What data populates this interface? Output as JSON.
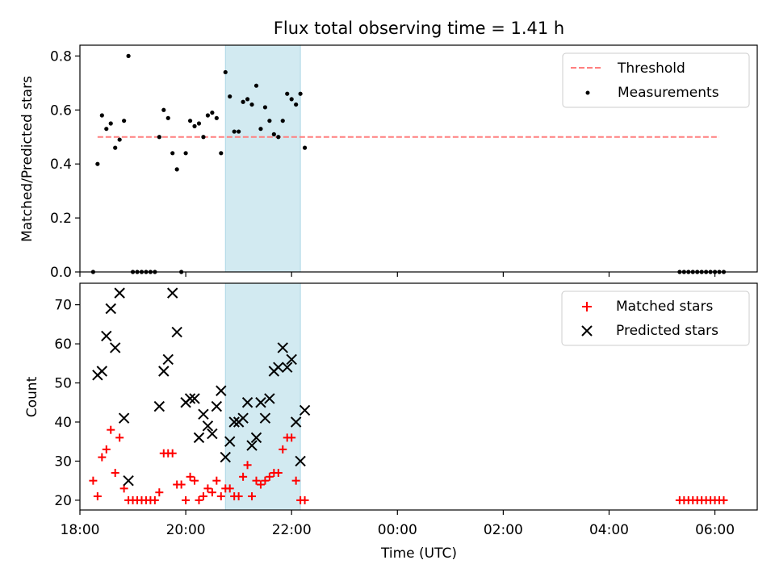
{
  "title": "Flux total observing time = 1.41 h",
  "colors": {
    "threshold": "#ff7f7f",
    "measurement": "#000000",
    "matched": "#ff0000",
    "predicted": "#000000",
    "highlight": "#add8e6"
  },
  "chart_data": [
    {
      "type": "scatter",
      "panel": "top",
      "ylabel": "Matched/Predicted stars",
      "xlabel": "",
      "xlim": [
        18.0,
        6.8
      ],
      "ylim": [
        0.0,
        0.84
      ],
      "yticks": [
        0.0,
        0.2,
        0.4,
        0.6,
        0.8
      ],
      "ytick_labels": [
        "0.0",
        "0.2",
        "0.4",
        "0.6",
        "0.8"
      ],
      "grid": false,
      "legend_position": "top-right",
      "legend": [
        "Threshold",
        "Measurements"
      ],
      "highlight_span": [
        "20:45",
        "22:10"
      ],
      "threshold": {
        "name": "Threshold",
        "value": 0.5,
        "x_start": "18:20",
        "x_end": "06:05"
      },
      "series": [
        {
          "name": "Measurements",
          "marker": "dot",
          "points": [
            [
              "18:15",
              0.0
            ],
            [
              "18:20",
              0.4
            ],
            [
              "18:25",
              0.58
            ],
            [
              "18:30",
              0.53
            ],
            [
              "18:35",
              0.55
            ],
            [
              "18:40",
              0.46
            ],
            [
              "18:45",
              0.49
            ],
            [
              "18:50",
              0.56
            ],
            [
              "18:55",
              0.8
            ],
            [
              "19:00",
              0.0
            ],
            [
              "19:05",
              0.0
            ],
            [
              "19:10",
              0.0
            ],
            [
              "19:15",
              0.0
            ],
            [
              "19:20",
              0.0
            ],
            [
              "19:25",
              0.0
            ],
            [
              "19:30",
              0.5
            ],
            [
              "19:35",
              0.6
            ],
            [
              "19:40",
              0.57
            ],
            [
              "19:45",
              0.44
            ],
            [
              "19:50",
              0.38
            ],
            [
              "19:55",
              0.0
            ],
            [
              "20:00",
              0.44
            ],
            [
              "20:05",
              0.56
            ],
            [
              "20:10",
              0.54
            ],
            [
              "20:15",
              0.55
            ],
            [
              "20:20",
              0.5
            ],
            [
              "20:25",
              0.58
            ],
            [
              "20:30",
              0.59
            ],
            [
              "20:35",
              0.57
            ],
            [
              "20:40",
              0.44
            ],
            [
              "20:45",
              0.74
            ],
            [
              "20:50",
              0.65
            ],
            [
              "20:55",
              0.52
            ],
            [
              "21:00",
              0.52
            ],
            [
              "21:05",
              0.63
            ],
            [
              "21:10",
              0.64
            ],
            [
              "21:15",
              0.62
            ],
            [
              "21:20",
              0.69
            ],
            [
              "21:25",
              0.53
            ],
            [
              "21:30",
              0.61
            ],
            [
              "21:35",
              0.56
            ],
            [
              "21:40",
              0.51
            ],
            [
              "21:45",
              0.5
            ],
            [
              "21:50",
              0.56
            ],
            [
              "21:55",
              0.66
            ],
            [
              "22:00",
              0.64
            ],
            [
              "22:05",
              0.62
            ],
            [
              "22:10",
              0.66
            ],
            [
              "22:15",
              0.46
            ],
            [
              "05:20",
              0.0
            ],
            [
              "05:25",
              0.0
            ],
            [
              "05:30",
              0.0
            ],
            [
              "05:35",
              0.0
            ],
            [
              "05:40",
              0.0
            ],
            [
              "05:45",
              0.0
            ],
            [
              "05:50",
              0.0
            ],
            [
              "05:55",
              0.0
            ],
            [
              "06:00",
              0.0
            ],
            [
              "06:05",
              0.0
            ],
            [
              "06:10",
              0.0
            ]
          ]
        }
      ]
    },
    {
      "type": "scatter",
      "panel": "bottom",
      "ylabel": "Count",
      "xlabel": "Time (UTC)",
      "xlim": [
        18.0,
        6.8
      ],
      "ylim": [
        17.5,
        75.5
      ],
      "yticks": [
        20,
        30,
        40,
        50,
        60,
        70
      ],
      "ytick_labels": [
        "20",
        "30",
        "40",
        "50",
        "60",
        "70"
      ],
      "xticks": [
        "18:00",
        "20:00",
        "22:00",
        "00:00",
        "02:00",
        "04:00",
        "06:00"
      ],
      "grid": false,
      "legend_position": "top-right",
      "legend": [
        "Matched stars",
        "Predicted stars"
      ],
      "highlight_span": [
        "20:45",
        "22:10"
      ],
      "series": [
        {
          "name": "Matched stars",
          "marker": "plus",
          "points": [
            [
              "18:15",
              25
            ],
            [
              "18:20",
              21
            ],
            [
              "18:25",
              31
            ],
            [
              "18:30",
              33
            ],
            [
              "18:35",
              38
            ],
            [
              "18:40",
              27
            ],
            [
              "18:45",
              36
            ],
            [
              "18:50",
              23
            ],
            [
              "18:55",
              20
            ],
            [
              "19:00",
              20
            ],
            [
              "19:05",
              20
            ],
            [
              "19:10",
              20
            ],
            [
              "19:15",
              20
            ],
            [
              "19:20",
              20
            ],
            [
              "19:25",
              20
            ],
            [
              "19:30",
              22
            ],
            [
              "19:35",
              32
            ],
            [
              "19:40",
              32
            ],
            [
              "19:45",
              32
            ],
            [
              "19:50",
              24
            ],
            [
              "19:55",
              24
            ],
            [
              "20:00",
              20
            ],
            [
              "20:05",
              26
            ],
            [
              "20:10",
              25
            ],
            [
              "20:15",
              20
            ],
            [
              "20:20",
              21
            ],
            [
              "20:25",
              23
            ],
            [
              "20:30",
              22
            ],
            [
              "20:35",
              25
            ],
            [
              "20:40",
              21
            ],
            [
              "20:45",
              23
            ],
            [
              "20:50",
              23
            ],
            [
              "20:55",
              21
            ],
            [
              "21:00",
              21
            ],
            [
              "21:05",
              26
            ],
            [
              "21:10",
              29
            ],
            [
              "21:15",
              21
            ],
            [
              "21:20",
              25
            ],
            [
              "21:25",
              24
            ],
            [
              "21:30",
              25
            ],
            [
              "21:35",
              26
            ],
            [
              "21:40",
              27
            ],
            [
              "21:45",
              27
            ],
            [
              "21:50",
              33
            ],
            [
              "21:55",
              36
            ],
            [
              "22:00",
              36
            ],
            [
              "22:05",
              25
            ],
            [
              "22:10",
              20
            ],
            [
              "22:15",
              20
            ],
            [
              "05:20",
              20
            ],
            [
              "05:25",
              20
            ],
            [
              "05:30",
              20
            ],
            [
              "05:35",
              20
            ],
            [
              "05:40",
              20
            ],
            [
              "05:45",
              20
            ],
            [
              "05:50",
              20
            ],
            [
              "05:55",
              20
            ],
            [
              "06:00",
              20
            ],
            [
              "06:05",
              20
            ],
            [
              "06:10",
              20
            ]
          ]
        },
        {
          "name": "Predicted stars",
          "marker": "x",
          "points": [
            [
              "18:20",
              52
            ],
            [
              "18:25",
              53
            ],
            [
              "18:30",
              62
            ],
            [
              "18:35",
              69
            ],
            [
              "18:40",
              59
            ],
            [
              "18:45",
              73
            ],
            [
              "18:50",
              41
            ],
            [
              "18:55",
              25
            ],
            [
              "19:30",
              44
            ],
            [
              "19:35",
              53
            ],
            [
              "19:40",
              56
            ],
            [
              "19:45",
              73
            ],
            [
              "19:50",
              63
            ],
            [
              "20:00",
              45
            ],
            [
              "20:05",
              46
            ],
            [
              "20:10",
              46
            ],
            [
              "20:15",
              36
            ],
            [
              "20:20",
              42
            ],
            [
              "20:25",
              39
            ],
            [
              "20:30",
              37
            ],
            [
              "20:35",
              44
            ],
            [
              "20:40",
              48
            ],
            [
              "20:45",
              31
            ],
            [
              "20:50",
              35
            ],
            [
              "20:55",
              40
            ],
            [
              "21:00",
              40
            ],
            [
              "21:05",
              41
            ],
            [
              "21:10",
              45
            ],
            [
              "21:15",
              34
            ],
            [
              "21:20",
              36
            ],
            [
              "21:25",
              45
            ],
            [
              "21:30",
              41
            ],
            [
              "21:35",
              46
            ],
            [
              "21:40",
              53
            ],
            [
              "21:45",
              54
            ],
            [
              "21:50",
              59
            ],
            [
              "21:55",
              54
            ],
            [
              "22:00",
              56
            ],
            [
              "22:05",
              40
            ],
            [
              "22:10",
              30
            ],
            [
              "22:15",
              43
            ]
          ]
        }
      ]
    }
  ]
}
